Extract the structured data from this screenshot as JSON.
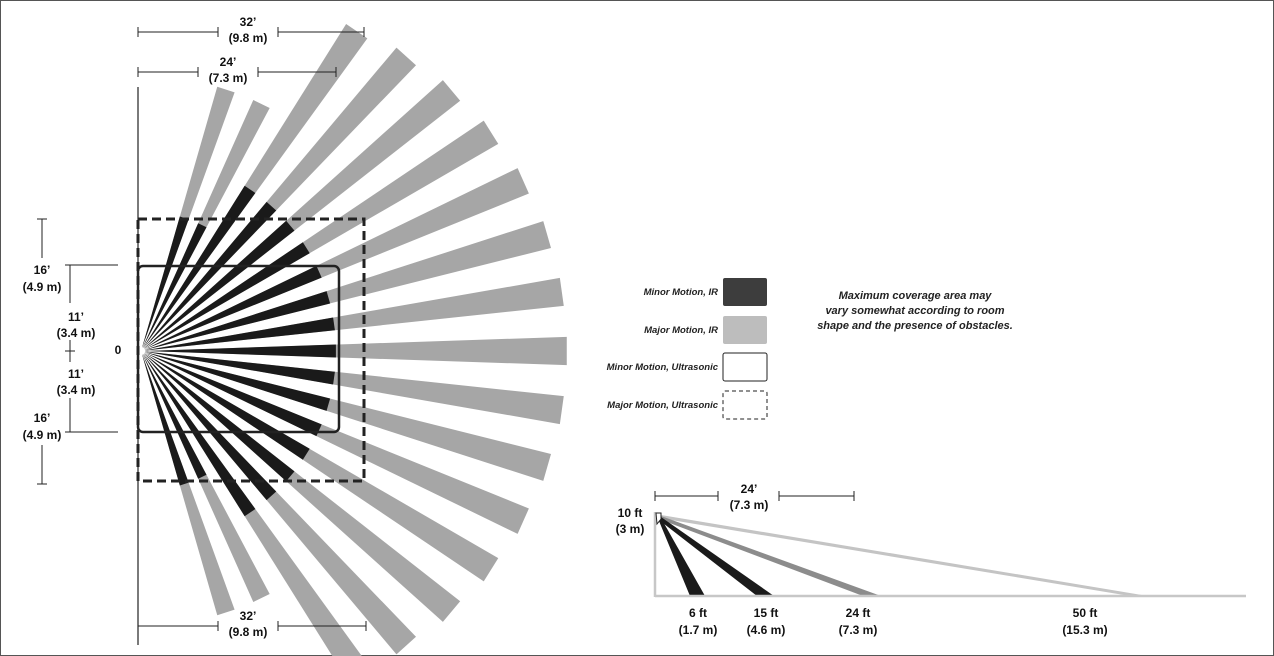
{
  "colors": {
    "major_ir": "#a6a6a6",
    "minor_ir": "#1a1a1a",
    "minor_ir_legend": "#3d3d3d",
    "major_ir_legend": "#bdbdbd",
    "outline": "#222222"
  },
  "top_view": {
    "dim_top_outer": {
      "feet": "32’",
      "meters": "(9.8 m)"
    },
    "dim_top_inner": {
      "feet": "24’",
      "meters": "(7.3 m)"
    },
    "dim_bottom": {
      "feet": "32’",
      "meters": "(9.8 m)"
    },
    "dim_left_outer_upper": {
      "feet": "16’",
      "meters": "(4.9 m)"
    },
    "dim_left_inner_upper": {
      "feet": "11’",
      "meters": "(3.4 m)"
    },
    "dim_left_inner_lower": {
      "feet": "11’",
      "meters": "(3.4 m)"
    },
    "dim_left_outer_lower": {
      "feet": "16’",
      "meters": "(4.9 m)"
    },
    "origin_label": "0"
  },
  "legend": {
    "items": [
      {
        "label": "Minor Motion, IR",
        "style": "solid-dark"
      },
      {
        "label": "Major Motion, IR",
        "style": "solid-light"
      },
      {
        "label": "Minor Motion, Ultrasonic",
        "style": "outline-solid"
      },
      {
        "label": "Major Motion, Ultrasonic",
        "style": "outline-dashed"
      }
    ],
    "note_lines": [
      "Maximum coverage area may",
      "vary somewhat according to room",
      "shape and the presence of obstacles."
    ]
  },
  "side_view": {
    "height": {
      "feet": "10 ft",
      "meters": "(3 m)"
    },
    "dim_top": {
      "feet": "24’",
      "meters": "(7.3 m)"
    },
    "distances": [
      {
        "feet": "6 ft",
        "meters": "(1.7 m)"
      },
      {
        "feet": "15 ft",
        "meters": "(4.6 m)"
      },
      {
        "feet": "24 ft",
        "meters": "(7.3 m)"
      },
      {
        "feet": "50 ft",
        "meters": "(15.3 m)"
      }
    ]
  }
}
